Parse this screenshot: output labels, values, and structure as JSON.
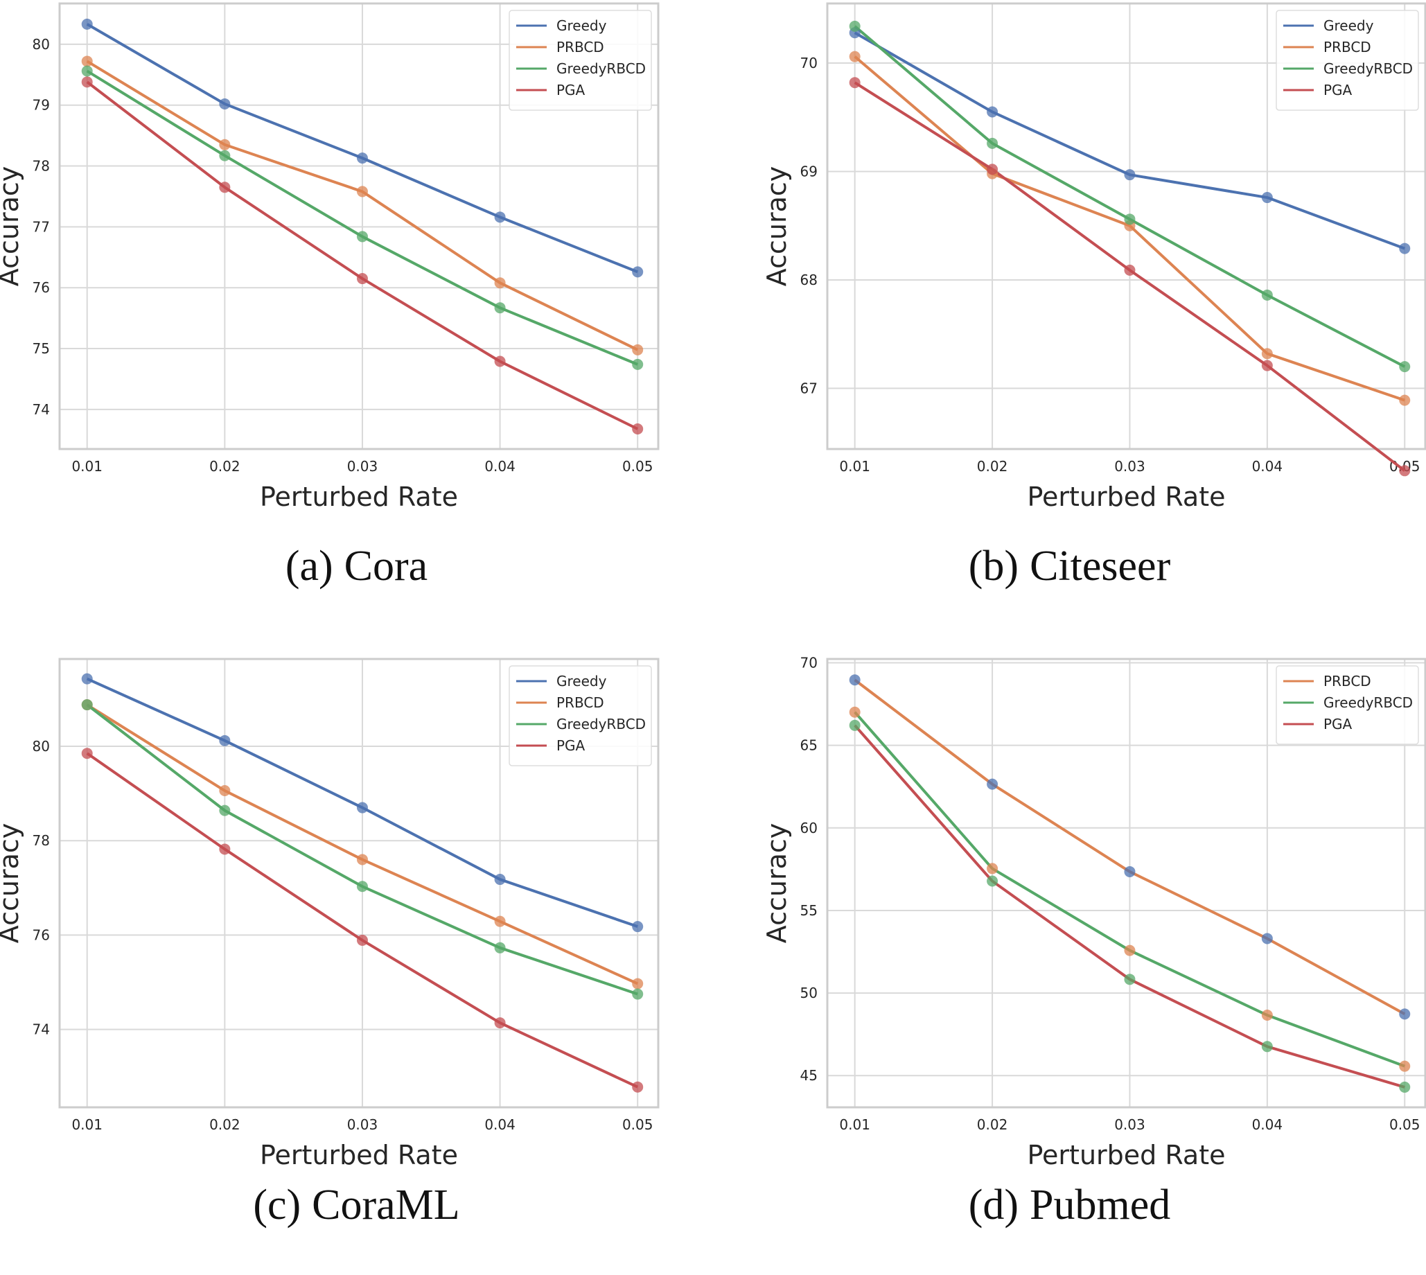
{
  "colors": {
    "Greedy": "#4c72b0",
    "PRBCD": "#dd8452",
    "GreedyRBCD": "#55a868",
    "PGA": "#c44e52",
    "grid": "#d9d9d9",
    "frame": "#cccccc"
  },
  "chart_data": [
    {
      "type": "line",
      "id": "cora",
      "caption_tag": "(a)",
      "caption_name": "Cora",
      "xlabel": "Perturbed Rate",
      "ylabel": "Accuracy",
      "x": [
        0.01,
        0.02,
        0.03,
        0.04,
        0.05
      ],
      "x_tick_labels": [
        "0.01",
        "0.02",
        "0.03",
        "0.04",
        "0.05"
      ],
      "xlim": [
        0.008,
        0.0515
      ],
      "ylim": [
        73.35,
        80.67
      ],
      "y_ticks": [
        74,
        75,
        76,
        77,
        78,
        79,
        80
      ],
      "grid": true,
      "legend_position": "top-right",
      "legend": [
        "Greedy",
        "PRBCD",
        "GreedyRBCD",
        "PGA"
      ],
      "series": [
        {
          "name": "Greedy",
          "values": [
            80.33,
            79.02,
            78.13,
            77.16,
            76.26
          ],
          "marker_color_of": "Greedy"
        },
        {
          "name": "PRBCD",
          "values": [
            79.72,
            78.35,
            77.58,
            76.08,
            74.98
          ],
          "marker_color_of": "PRBCD"
        },
        {
          "name": "GreedyRBCD",
          "values": [
            79.56,
            78.17,
            76.84,
            75.67,
            74.74
          ],
          "marker_color_of": "GreedyRBCD"
        },
        {
          "name": "PGA",
          "values": [
            79.38,
            77.65,
            76.15,
            74.79,
            73.68
          ],
          "marker_color_of": "PGA"
        }
      ]
    },
    {
      "type": "line",
      "id": "citeseer",
      "caption_tag": "(b)",
      "caption_name": "Citeseer",
      "xlabel": "Perturbed Rate",
      "ylabel": "Accuracy",
      "x": [
        0.01,
        0.02,
        0.03,
        0.04,
        0.05
      ],
      "x_tick_labels": [
        "0.01",
        "0.02",
        "0.03",
        "0.04",
        "0.05"
      ],
      "xlim": [
        0.008,
        0.0515
      ],
      "ylim": [
        66.44,
        70.55
      ],
      "y_ticks": [
        67,
        68,
        69,
        70
      ],
      "grid": true,
      "legend_position": "top-right",
      "legend": [
        "Greedy",
        "PRBCD",
        "GreedyRBCD",
        "PGA"
      ],
      "series": [
        {
          "name": "Greedy",
          "values": [
            70.28,
            69.55,
            68.97,
            68.76,
            68.29
          ],
          "marker_color_of": "Greedy"
        },
        {
          "name": "PRBCD",
          "values": [
            70.06,
            68.98,
            68.5,
            67.32,
            66.89
          ],
          "marker_color_of": "PRBCD"
        },
        {
          "name": "GreedyRBCD",
          "values": [
            70.34,
            69.26,
            68.56,
            67.86,
            67.2
          ],
          "marker_color_of": "GreedyRBCD"
        },
        {
          "name": "PGA",
          "values": [
            69.82,
            69.02,
            68.09,
            67.21,
            66.24
          ],
          "marker_color_of": "PGA"
        }
      ]
    },
    {
      "type": "line",
      "id": "coraml",
      "caption_tag": "(c)",
      "caption_name": "CoraML",
      "xlabel": "Perturbed Rate",
      "ylabel": "Accuracy",
      "x": [
        0.01,
        0.02,
        0.03,
        0.04,
        0.05
      ],
      "x_tick_labels": [
        "0.01",
        "0.02",
        "0.03",
        "0.04",
        "0.05"
      ],
      "xlim": [
        0.008,
        0.0515
      ],
      "ylim": [
        72.35,
        81.85
      ],
      "y_ticks": [
        74,
        76,
        78,
        80
      ],
      "grid": true,
      "legend_position": "top-right",
      "legend": [
        "Greedy",
        "PRBCD",
        "GreedyRBCD",
        "PGA"
      ],
      "series": [
        {
          "name": "Greedy",
          "values": [
            81.43,
            80.12,
            78.7,
            77.18,
            76.18
          ],
          "marker_color_of": "Greedy"
        },
        {
          "name": "PRBCD",
          "values": [
            80.88,
            79.06,
            77.6,
            76.29,
            74.97
          ],
          "marker_color_of": "PRBCD"
        },
        {
          "name": "GreedyRBCD",
          "values": [
            80.88,
            78.64,
            77.03,
            75.73,
            74.75
          ],
          "marker_color_of": "GreedyRBCD"
        },
        {
          "name": "PGA",
          "values": [
            79.85,
            77.82,
            75.89,
            74.14,
            72.78
          ],
          "marker_color_of": "PGA"
        }
      ]
    },
    {
      "type": "line",
      "id": "pubmed",
      "caption_tag": "(d)",
      "caption_name": "Pubmed",
      "xlabel": "Perturbed Rate",
      "ylabel": "Accuracy",
      "x": [
        0.01,
        0.02,
        0.03,
        0.04,
        0.05
      ],
      "x_tick_labels": [
        "0.01",
        "0.02",
        "0.03",
        "0.04",
        "0.05"
      ],
      "xlim": [
        0.008,
        0.0515
      ],
      "ylim": [
        43.08,
        70.23
      ],
      "y_ticks": [
        45,
        50,
        55,
        60,
        65,
        70
      ],
      "grid": true,
      "legend_position": "top-right",
      "legend": [
        "PRBCD",
        "GreedyRBCD",
        "PGA"
      ],
      "series": [
        {
          "name": "PRBCD",
          "values": [
            68.96,
            62.65,
            57.35,
            53.3,
            48.73
          ],
          "marker_color_of": "Greedy"
        },
        {
          "name": "GreedyRBCD",
          "values": [
            67.01,
            57.54,
            52.58,
            48.66,
            45.57
          ],
          "marker_color_of": "PRBCD"
        },
        {
          "name": "PGA",
          "values": [
            66.21,
            56.78,
            50.83,
            46.76,
            44.3
          ],
          "marker_color_of": "GreedyRBCD"
        }
      ]
    }
  ]
}
